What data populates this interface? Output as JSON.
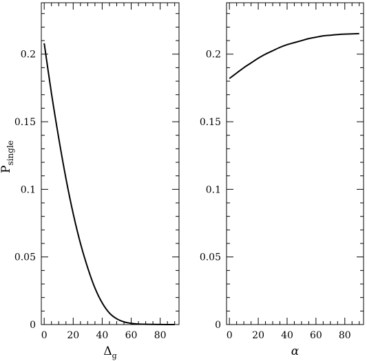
{
  "chart_data": [
    {
      "type": "line",
      "xlabel_main": "Δ",
      "xlabel_sub": "g",
      "ylabel_main": "P",
      "ylabel_sub": "single",
      "xlim": [
        -2,
        93
      ],
      "ylim": [
        0,
        0.238
      ],
      "x_ticks": [
        0,
        20,
        40,
        60,
        80
      ],
      "x_tick_labels": [
        "0",
        "20",
        "40",
        "60",
        "80"
      ],
      "y_ticks": [
        0,
        0.05,
        0.1,
        0.15,
        0.2
      ],
      "y_tick_labels": [
        "0",
        "0.05",
        "0.1",
        "0.15",
        "0.2"
      ],
      "x_minor_step": 5,
      "y_minor_step": 0.01,
      "series": [
        {
          "x": [
            0,
            5,
            10,
            15,
            20,
            25,
            30,
            35,
            40,
            45,
            50,
            55,
            60,
            65,
            70,
            75,
            80,
            85,
            90
          ],
          "values": [
            0.208,
            0.171,
            0.138,
            0.108,
            0.082,
            0.06,
            0.042,
            0.027,
            0.016,
            0.0085,
            0.0043,
            0.002,
            0.0009,
            0.0004,
            0.0002,
            0.0001,
            5e-05,
            2e-05,
            0.0
          ]
        }
      ]
    },
    {
      "type": "line",
      "xlabel_main": "α",
      "xlabel_sub": "",
      "ylabel_main": "",
      "ylabel_sub": "",
      "xlim": [
        -2,
        93
      ],
      "ylim": [
        0,
        0.238
      ],
      "x_ticks": [
        0,
        20,
        40,
        60,
        80
      ],
      "x_tick_labels": [
        "0",
        "20",
        "40",
        "60",
        "80"
      ],
      "y_ticks": [
        0,
        0.05,
        0.1,
        0.15,
        0.2
      ],
      "y_tick_labels": [
        "0",
        "0.05",
        "0.1",
        "0.15",
        "0.2"
      ],
      "x_minor_step": 5,
      "y_minor_step": 0.01,
      "series": [
        {
          "x": [
            0,
            5,
            10,
            15,
            20,
            25,
            30,
            35,
            40,
            45,
            50,
            55,
            60,
            65,
            70,
            75,
            80,
            85,
            90
          ],
          "values": [
            0.182,
            0.186,
            0.19,
            0.1935,
            0.197,
            0.2,
            0.2025,
            0.205,
            0.207,
            0.2085,
            0.21,
            0.2115,
            0.2125,
            0.2135,
            0.214,
            0.2145,
            0.2148,
            0.215,
            0.2152
          ]
        }
      ]
    }
  ]
}
